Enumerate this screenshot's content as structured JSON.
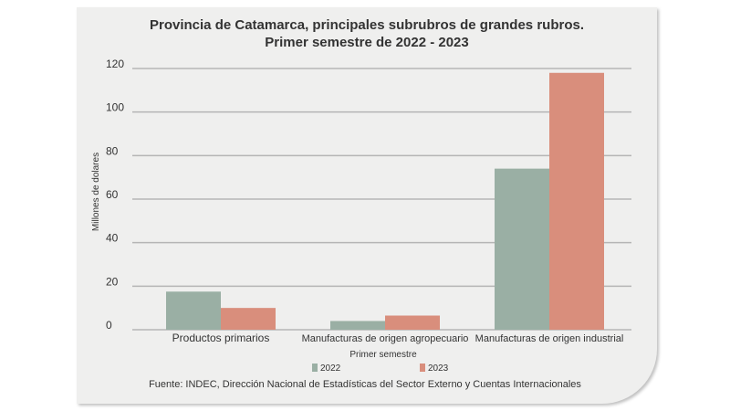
{
  "chart_data": {
    "type": "bar",
    "title_line1": "Provincia de Catamarca, principales subrubros de grandes rubros.",
    "title_line2": "Primer semestre de 2022 - 2023",
    "xlabel": "Primer semestre",
    "ylabel": "Millones de dolares",
    "categories": [
      "Productos primarios",
      "Manufacturas de origen agropecuario",
      "Manufacturas de origen industrial"
    ],
    "series": [
      {
        "name": "2022",
        "values": [
          17.5,
          4,
          74
        ],
        "color": "#9aafa4"
      },
      {
        "name": "2023",
        "values": [
          10,
          6.5,
          118
        ],
        "color": "#d98e7c"
      }
    ],
    "ylim": [
      0,
      120
    ],
    "yticks": [
      0,
      20,
      40,
      60,
      80,
      100,
      120
    ],
    "grid": true,
    "legend_position": "bottom",
    "source": "Fuente: INDEC, Dirección Nacional de Estadísticas  del Sector Externo y Cuentas Internacionales"
  }
}
